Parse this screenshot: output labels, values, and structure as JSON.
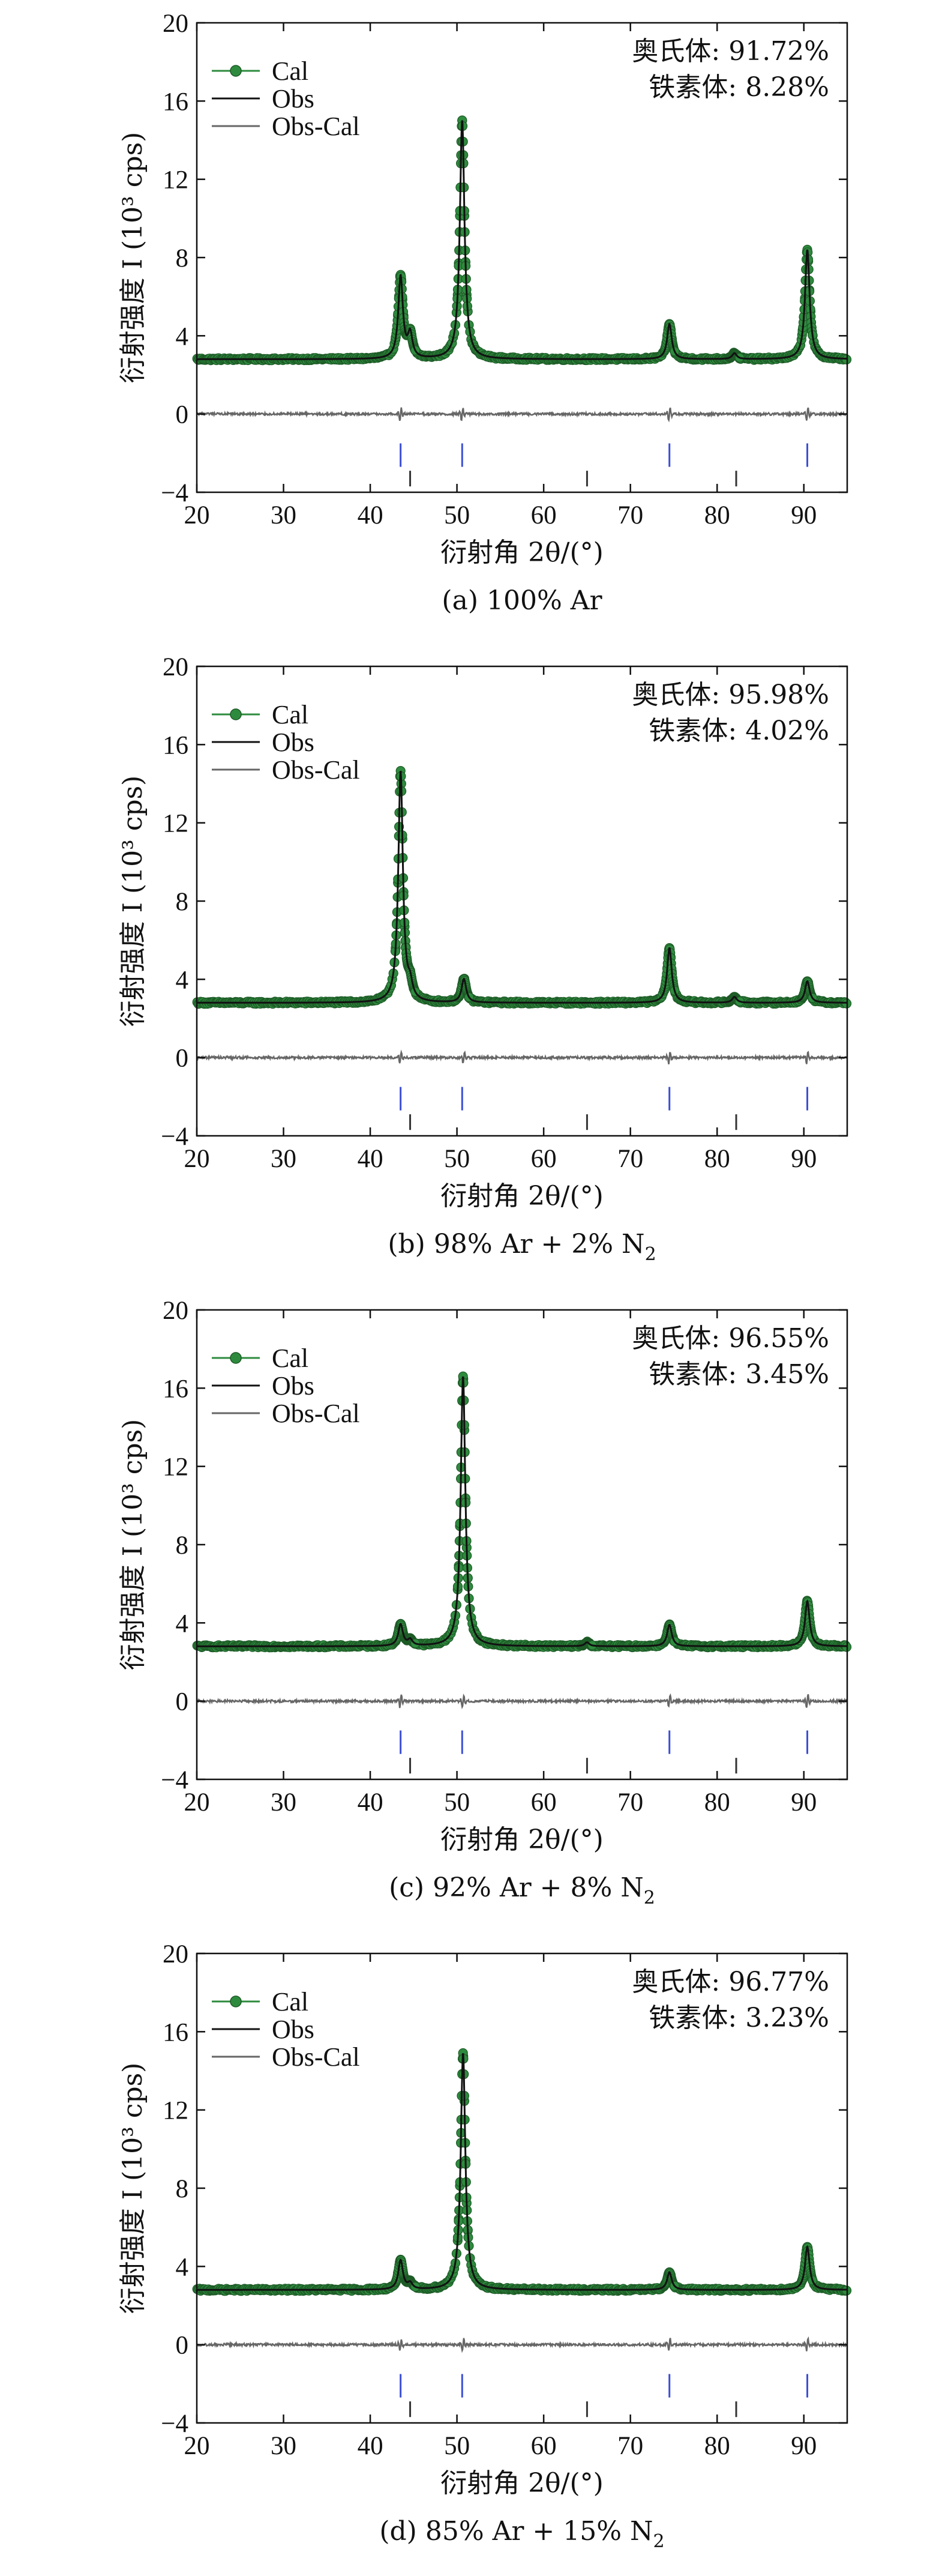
{
  "chart_data": [
    {
      "type": "line",
      "xlabel": "衍射角 2θ/(°)",
      "ylabel": "衍射强度 I (10³ cps)",
      "caption": "(a) 100% Ar",
      "xlim": [
        20,
        95
      ],
      "ylim": [
        -4,
        20
      ],
      "x_ticks": [
        20,
        30,
        40,
        50,
        60,
        70,
        80,
        90
      ],
      "y_ticks": [
        -4,
        0,
        4,
        8,
        12,
        16,
        20
      ],
      "legend": [
        "Cal",
        "Obs",
        "Obs-Cal"
      ],
      "legend_position": "top-left",
      "phases": {
        "austenite": "奥氏体: 91.72%",
        "ferrite": "铁素体: 8.28%"
      },
      "baseline": 2.8,
      "peaks": [
        {
          "x": 43.5,
          "y": 7.0
        },
        {
          "x": 44.6,
          "y": 4.0
        },
        {
          "x": 50.6,
          "y": 15.0
        },
        {
          "x": 74.5,
          "y": 4.6
        },
        {
          "x": 82.0,
          "y": 3.1
        },
        {
          "x": 90.4,
          "y": 8.4
        }
      ],
      "diff_features": [
        43.5,
        50.6,
        74.5,
        90.4
      ],
      "austenite_reflections": [
        43.5,
        50.6,
        74.5,
        90.4
      ],
      "ferrite_reflections": [
        44.6,
        65.0,
        82.2
      ]
    },
    {
      "type": "line",
      "xlabel": "衍射角 2θ/(°)",
      "ylabel": "衍射强度 I (10³ cps)",
      "caption": "(b) 98% Ar + 2% N",
      "caption_sub": "2",
      "xlim": [
        20,
        95
      ],
      "ylim": [
        -4,
        20
      ],
      "x_ticks": [
        20,
        30,
        40,
        50,
        60,
        70,
        80,
        90
      ],
      "y_ticks": [
        -4,
        0,
        4,
        8,
        12,
        16,
        20
      ],
      "legend": [
        "Cal",
        "Obs",
        "Obs-Cal"
      ],
      "legend_position": "top-left",
      "phases": {
        "austenite": "奥氏体: 95.98%",
        "ferrite": "铁素体: 4.02%"
      },
      "baseline": 2.8,
      "peaks": [
        {
          "x": 43.5,
          "y": 14.6
        },
        {
          "x": 44.6,
          "y": 3.5
        },
        {
          "x": 50.8,
          "y": 4.0
        },
        {
          "x": 74.5,
          "y": 5.6
        },
        {
          "x": 82.0,
          "y": 3.1
        },
        {
          "x": 90.4,
          "y": 3.9
        }
      ],
      "diff_features": [
        43.5,
        50.8,
        74.5,
        90.4
      ],
      "austenite_reflections": [
        43.5,
        50.6,
        74.5,
        90.4
      ],
      "ferrite_reflections": [
        44.6,
        65.0,
        82.2
      ]
    },
    {
      "type": "line",
      "xlabel": "衍射角 2θ/(°)",
      "ylabel": "衍射强度 I (10³ cps)",
      "caption": "(c) 92% Ar + 8% N",
      "caption_sub": "2",
      "xlim": [
        20,
        95
      ],
      "ylim": [
        -4,
        20
      ],
      "x_ticks": [
        20,
        30,
        40,
        50,
        60,
        70,
        80,
        90
      ],
      "y_ticks": [
        -4,
        0,
        4,
        8,
        12,
        16,
        20
      ],
      "legend": [
        "Cal",
        "Obs",
        "Obs-Cal"
      ],
      "legend_position": "top-left",
      "phases": {
        "austenite": "奥氏体: 96.55%",
        "ferrite": "铁素体: 3.45%"
      },
      "baseline": 2.8,
      "peaks": [
        {
          "x": 43.5,
          "y": 3.9
        },
        {
          "x": 44.6,
          "y": 3.1
        },
        {
          "x": 50.7,
          "y": 16.6
        },
        {
          "x": 65.0,
          "y": 3.0
        },
        {
          "x": 74.5,
          "y": 3.9
        },
        {
          "x": 90.4,
          "y": 5.1
        }
      ],
      "diff_features": [
        43.5,
        50.7,
        74.5,
        90.4
      ],
      "austenite_reflections": [
        43.5,
        50.6,
        74.5,
        90.4
      ],
      "ferrite_reflections": [
        44.6,
        65.0,
        82.2
      ]
    },
    {
      "type": "line",
      "xlabel": "衍射角 2θ/(°)",
      "ylabel": "衍射强度 I (10³ cps)",
      "caption": "(d) 85% Ar + 15% N",
      "caption_sub": "2",
      "xlim": [
        20,
        95
      ],
      "ylim": [
        -4,
        20
      ],
      "x_ticks": [
        20,
        30,
        40,
        50,
        60,
        70,
        80,
        90
      ],
      "y_ticks": [
        -4,
        0,
        4,
        8,
        12,
        16,
        20
      ],
      "legend": [
        "Cal",
        "Obs",
        "Obs-Cal"
      ],
      "legend_position": "top-left",
      "phases": {
        "austenite": "奥氏体: 96.77%",
        "ferrite": "铁素体: 3.23%"
      },
      "baseline": 2.8,
      "peaks": [
        {
          "x": 43.5,
          "y": 4.3
        },
        {
          "x": 44.6,
          "y": 3.1
        },
        {
          "x": 50.7,
          "y": 14.9
        },
        {
          "x": 74.5,
          "y": 3.7
        },
        {
          "x": 90.4,
          "y": 5.0
        }
      ],
      "diff_features": [
        43.5,
        50.7,
        74.5,
        90.4
      ],
      "austenite_reflections": [
        43.5,
        50.6,
        74.5,
        90.4
      ],
      "ferrite_reflections": [
        44.6,
        65.0,
        82.2
      ]
    }
  ],
  "colors": {
    "cal_marker": "#2e8b3e",
    "cal_marker_light": "#6fcf6f",
    "obs_line": "#111111",
    "diff_line": "#666666",
    "austenite_tick": "#3b4fd4",
    "ferrite_tick": "#333333"
  }
}
